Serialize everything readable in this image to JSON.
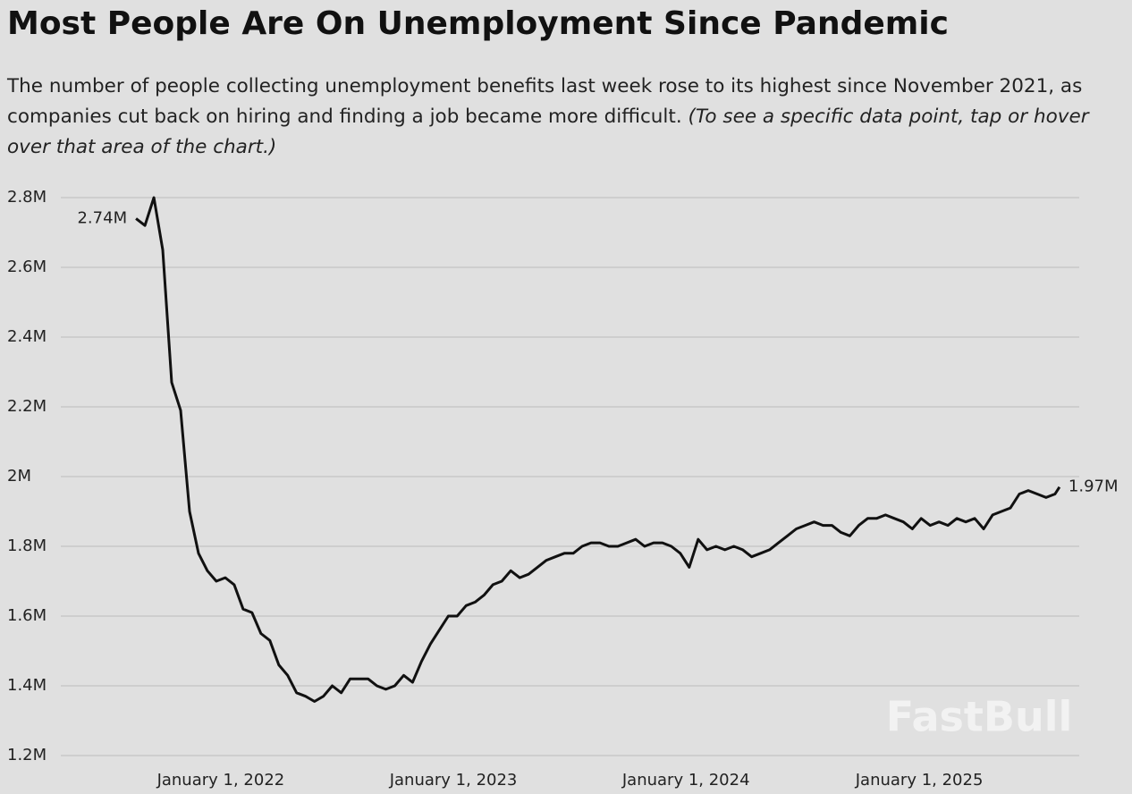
{
  "chart_data": {
    "type": "line",
    "title": "Most People Are On Unemployment Since Pandemic",
    "subtitle": "The number of people collecting unemployment benefits last week rose to its highest since November 2021, as companies cut back on hiring and finding a job became more difficult.",
    "subtitle_note": "(To see a specific data point, tap or hover over that area of the chart.)",
    "watermark": "FastBull",
    "start_label": "2.74M",
    "end_label": "1.97M",
    "color": "#111111",
    "grid": true,
    "xlim": [
      "2021-04-25",
      "2025-09-09"
    ],
    "xticks": [
      {
        "value": "2022-01-01",
        "label": "January 1, 2022"
      },
      {
        "value": "2023-01-01",
        "label": "January 1, 2023"
      },
      {
        "value": "2024-01-01",
        "label": "January 1, 2024"
      },
      {
        "value": "2025-01-01",
        "label": "January 1, 2025"
      }
    ],
    "ylim": [
      1200000,
      2800000
    ],
    "yticks": [
      {
        "value": 1200000,
        "label": "1.2M"
      },
      {
        "value": 1400000,
        "label": "1.4M"
      },
      {
        "value": 1600000,
        "label": "1.6M"
      },
      {
        "value": 1800000,
        "label": "1.8M"
      },
      {
        "value": 2000000,
        "label": "2M"
      },
      {
        "value": 2200000,
        "label": "2.2M"
      },
      {
        "value": 2400000,
        "label": "2.4M"
      },
      {
        "value": 2600000,
        "label": "2.6M"
      },
      {
        "value": 2800000,
        "label": "2.8M"
      }
    ],
    "x": [
      "2021-08-21",
      "2021-09-04",
      "2021-09-18",
      "2021-10-02",
      "2021-10-16",
      "2021-10-30",
      "2021-11-13",
      "2021-11-27",
      "2021-12-11",
      "2021-12-25",
      "2022-01-08",
      "2022-01-22",
      "2022-02-05",
      "2022-02-19",
      "2022-03-05",
      "2022-03-19",
      "2022-04-02",
      "2022-04-16",
      "2022-04-30",
      "2022-05-14",
      "2022-05-28",
      "2022-06-11",
      "2022-06-25",
      "2022-07-09",
      "2022-07-23",
      "2022-08-06",
      "2022-08-20",
      "2022-09-03",
      "2022-09-17",
      "2022-10-01",
      "2022-10-15",
      "2022-10-29",
      "2022-11-12",
      "2022-11-26",
      "2022-12-10",
      "2022-12-24",
      "2023-01-07",
      "2023-01-21",
      "2023-02-04",
      "2023-02-18",
      "2023-03-04",
      "2023-03-18",
      "2023-04-01",
      "2023-04-15",
      "2023-04-29",
      "2023-05-13",
      "2023-05-27",
      "2023-06-10",
      "2023-06-24",
      "2023-07-08",
      "2023-07-22",
      "2023-08-05",
      "2023-08-19",
      "2023-09-02",
      "2023-09-16",
      "2023-09-30",
      "2023-10-14",
      "2023-10-28",
      "2023-11-11",
      "2023-11-25",
      "2023-12-09",
      "2023-12-23",
      "2024-01-06",
      "2024-01-20",
      "2024-02-03",
      "2024-02-17",
      "2024-03-02",
      "2024-03-16",
      "2024-03-30",
      "2024-04-13",
      "2024-04-27",
      "2024-05-11",
      "2024-05-25",
      "2024-06-08",
      "2024-06-22",
      "2024-07-06",
      "2024-07-20",
      "2024-08-03",
      "2024-08-17",
      "2024-08-31",
      "2024-09-14",
      "2024-09-28",
      "2024-10-12",
      "2024-10-26",
      "2024-11-09",
      "2024-11-23",
      "2024-12-07",
      "2024-12-21",
      "2025-01-04",
      "2025-01-18",
      "2025-02-01",
      "2025-02-15",
      "2025-03-01",
      "2025-03-15",
      "2025-03-29",
      "2025-04-12",
      "2025-04-26",
      "2025-05-10",
      "2025-05-24",
      "2025-06-07",
      "2025-06-21",
      "2025-07-05",
      "2025-07-19",
      "2025-08-02",
      "2025-08-09"
    ],
    "values": [
      2740000,
      2720000,
      2800000,
      2650000,
      2270000,
      2190000,
      1900000,
      1780000,
      1730000,
      1700000,
      1710000,
      1690000,
      1620000,
      1610000,
      1550000,
      1530000,
      1460000,
      1430000,
      1380000,
      1370000,
      1355000,
      1370000,
      1400000,
      1380000,
      1420000,
      1420000,
      1420000,
      1400000,
      1390000,
      1400000,
      1430000,
      1410000,
      1470000,
      1520000,
      1560000,
      1600000,
      1600000,
      1630000,
      1640000,
      1660000,
      1690000,
      1700000,
      1730000,
      1710000,
      1720000,
      1740000,
      1760000,
      1770000,
      1780000,
      1780000,
      1800000,
      1810000,
      1810000,
      1800000,
      1800000,
      1810000,
      1820000,
      1800000,
      1810000,
      1810000,
      1800000,
      1780000,
      1740000,
      1820000,
      1790000,
      1800000,
      1790000,
      1800000,
      1790000,
      1770000,
      1780000,
      1790000,
      1810000,
      1830000,
      1850000,
      1860000,
      1870000,
      1860000,
      1860000,
      1840000,
      1830000,
      1860000,
      1880000,
      1880000,
      1890000,
      1880000,
      1870000,
      1850000,
      1880000,
      1860000,
      1870000,
      1860000,
      1880000,
      1870000,
      1880000,
      1850000,
      1890000,
      1900000,
      1910000,
      1950000,
      1960000,
      1950000,
      1940000,
      1950000,
      1970000
    ]
  }
}
